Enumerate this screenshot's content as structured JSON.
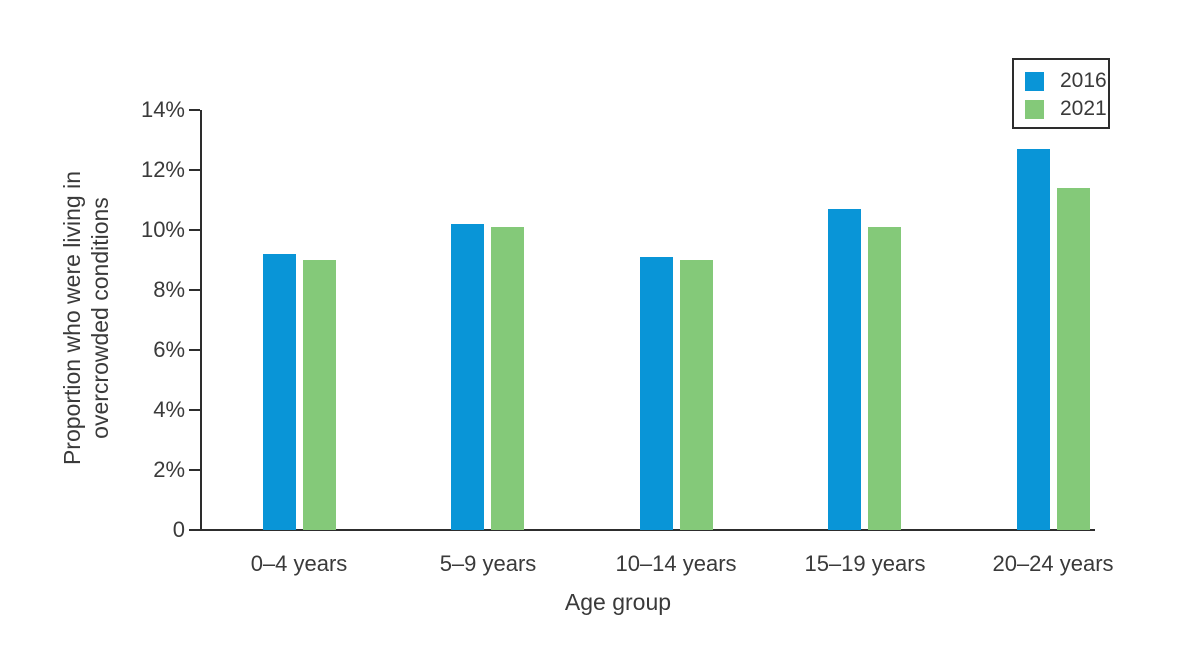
{
  "chart_data": {
    "type": "bar",
    "categories": [
      "0–4 years",
      "5–9 years",
      "10–14 years",
      "15–19 years",
      "20–24 years"
    ],
    "series": [
      {
        "name": "2016",
        "color": "#0995d7",
        "values": [
          9.2,
          10.2,
          9.1,
          10.7,
          12.7
        ]
      },
      {
        "name": "2021",
        "color": "#84c979",
        "values": [
          9.0,
          10.1,
          9.0,
          10.1,
          11.4
        ]
      }
    ],
    "xlabel": "Age group",
    "ylabel_lines": [
      "Proportion who were living in",
      "overcrowded conditions"
    ],
    "y_ticks": [
      {
        "label": "0",
        "value": 0
      },
      {
        "label": "2%",
        "value": 2
      },
      {
        "label": "4%",
        "value": 4
      },
      {
        "label": "6%",
        "value": 6
      },
      {
        "label": "8%",
        "value": 8
      },
      {
        "label": "10%",
        "value": 10
      },
      {
        "label": "12%",
        "value": 12
      },
      {
        "label": "14%",
        "value": 14
      }
    ],
    "ylim": [
      0,
      14
    ],
    "legend": {
      "position": "top-right",
      "entries": [
        "2016",
        "2021"
      ]
    },
    "grid": false
  },
  "colors": {
    "axis": "#2d2d2d",
    "text": "#3a3a3a",
    "background": "#ffffff"
  }
}
